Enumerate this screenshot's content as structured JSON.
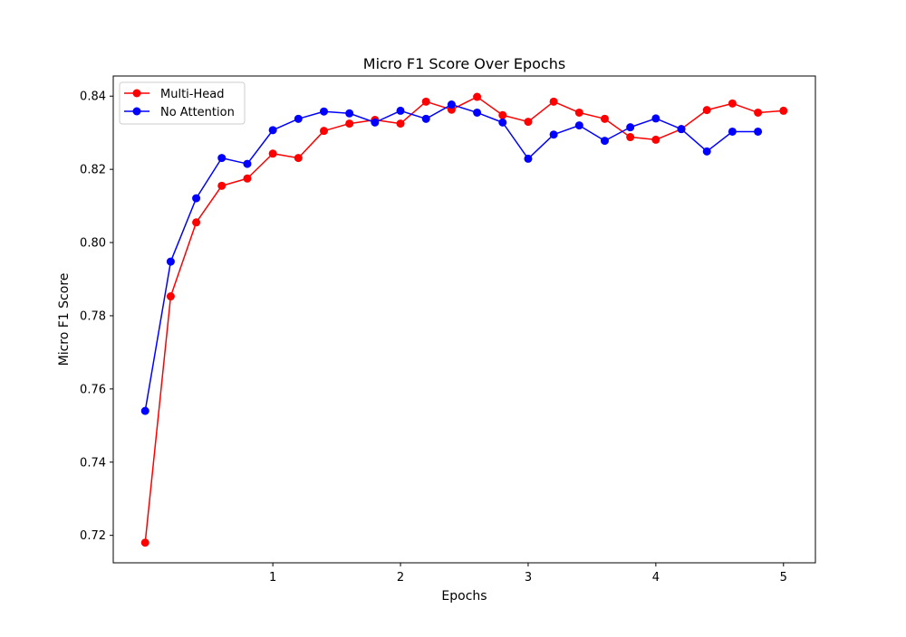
{
  "chart_data": {
    "type": "line",
    "title": "Micro F1 Score Over Epochs",
    "xlabel": "Epochs",
    "ylabel": "Micro F1 Score",
    "xlim": [
      -0.25,
      5.25
    ],
    "ylim": [
      0.7125,
      0.8455
    ],
    "xticks": [
      1,
      2,
      3,
      4,
      5
    ],
    "xtick_labels": [
      "1",
      "2",
      "3",
      "4",
      "5"
    ],
    "yticks": [
      0.72,
      0.74,
      0.76,
      0.78,
      0.8,
      0.82,
      0.84
    ],
    "ytick_labels": [
      "0.72",
      "0.74",
      "0.76",
      "0.78",
      "0.80",
      "0.82",
      "0.84"
    ],
    "grid": false,
    "legend": "top-left",
    "series": [
      {
        "name": "Multi-Head",
        "color": "#ff0000",
        "marker": "circle",
        "x": [
          0.0,
          0.2,
          0.4,
          0.6,
          0.8,
          1.0,
          1.2,
          1.4,
          1.6,
          1.8,
          2.0,
          2.2,
          2.4,
          2.6,
          2.8,
          3.0,
          3.2,
          3.4,
          3.6,
          3.8,
          4.0,
          4.2,
          4.4,
          4.6,
          4.8,
          5.0
        ],
        "values": [
          0.718,
          0.7853,
          0.8055,
          0.8155,
          0.8175,
          0.8243,
          0.8231,
          0.8305,
          0.8325,
          0.8335,
          0.8325,
          0.8385,
          0.8363,
          0.8398,
          0.8348,
          0.833,
          0.8385,
          0.8355,
          0.8338,
          0.8288,
          0.8281,
          0.831,
          0.8362,
          0.838,
          0.8355,
          0.836
        ]
      },
      {
        "name": "No Attention",
        "color": "#0000ff",
        "marker": "circle",
        "x": [
          0.0,
          0.2,
          0.4,
          0.6,
          0.8,
          1.0,
          1.2,
          1.4,
          1.6,
          1.8,
          2.0,
          2.2,
          2.4,
          2.6,
          2.8,
          3.0,
          3.2,
          3.4,
          3.6,
          3.8,
          4.0,
          4.2,
          4.4,
          4.6,
          4.8
        ],
        "values": [
          0.754,
          0.7948,
          0.8121,
          0.8231,
          0.8215,
          0.8307,
          0.8338,
          0.8358,
          0.8353,
          0.8328,
          0.836,
          0.8338,
          0.8377,
          0.8355,
          0.8328,
          0.8229,
          0.8295,
          0.832,
          0.8278,
          0.8315,
          0.8339,
          0.831,
          0.8249,
          0.8303,
          0.8303
        ]
      }
    ]
  }
}
